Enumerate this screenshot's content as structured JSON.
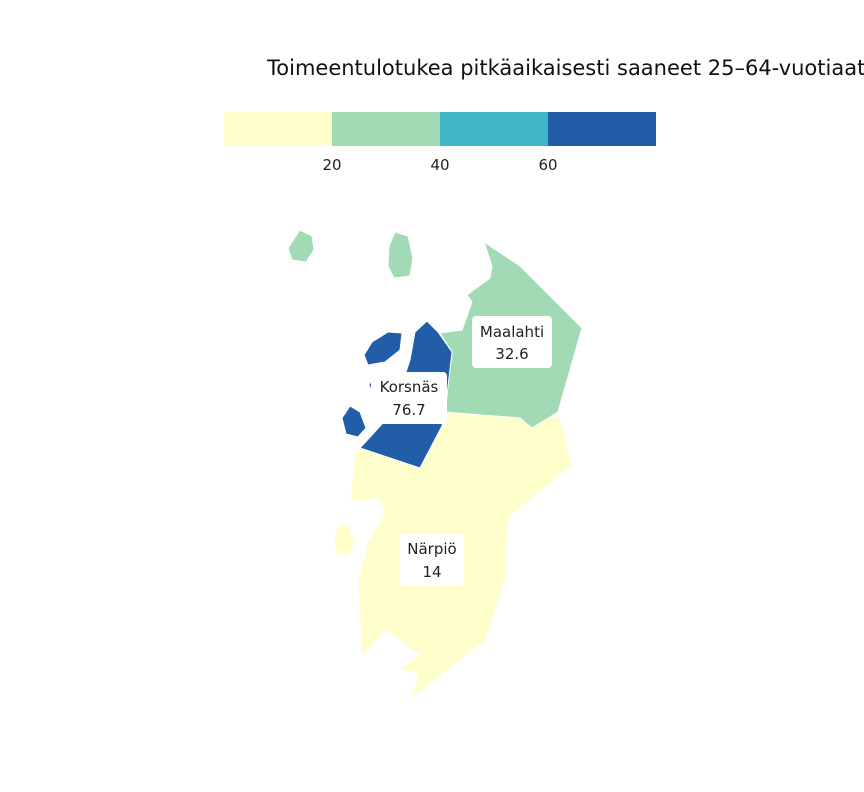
{
  "title": "Toimeentulotukea pitkäaikaisesti saaneet 25–64-vuotiaat",
  "legend": {
    "colors": [
      "#ffffcc",
      "#a1dab4",
      "#41b6c4",
      "#225ea8"
    ],
    "breaks": [
      "20",
      "40",
      "60"
    ]
  },
  "regions": [
    {
      "name": "Maalahti",
      "value": "32.6",
      "color": "#a1dab4"
    },
    {
      "name": "Korsnäs",
      "value": "76.7",
      "color": "#225ea8"
    },
    {
      "name": "Närpiö",
      "value": "14",
      "color": "#ffffcc"
    }
  ]
}
